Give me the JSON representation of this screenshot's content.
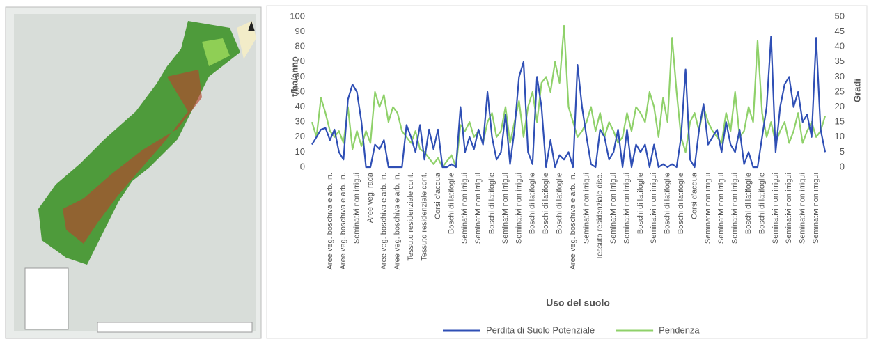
{
  "chart_data": {
    "type": "line",
    "x_label": "Uso del suolo",
    "y_label": "t/ha/anno",
    "y2_label": "Gradi",
    "categories": [
      null,
      null,
      null,
      null,
      "Aree veg. boschiva e arb. in.",
      null,
      null,
      "Aree veg. boschiva e arb. in.",
      null,
      null,
      "Seminativi non irrigui",
      null,
      null,
      "Aree veg. rada",
      null,
      null,
      "Aree veg. boschiva e arb. in.",
      null,
      null,
      "Aree veg. boschiva e arb. in.",
      null,
      null,
      "Tessuto residenziale cont.",
      null,
      null,
      "Tessuto residenziale cont.",
      null,
      null,
      "Corsi d'acqua",
      null,
      null,
      "Boschi di latifoglie",
      null,
      null,
      "Seminativi non irrigui",
      null,
      null,
      "Seminativi non irrigui",
      null,
      null,
      "Boschi di latifoglie",
      null,
      null,
      "Seminativi non irrigui",
      null,
      null,
      "Seminativi non irrigui",
      null,
      null,
      "Boschi di latifoglie",
      null,
      null,
      "Boschi di latifoglie",
      null,
      null,
      "Boschi di latifoglie",
      null,
      null,
      "Aree veg. boschiva e arb. in.",
      null,
      null,
      "Seminativi non irrigui",
      null,
      null,
      "Tessuto residenziale disc.",
      null,
      null,
      "Seminativi non irrigui",
      null,
      null,
      "Seminativi non irrigui",
      null,
      null,
      "Boschi di latifoglie",
      null,
      null,
      "Seminativi non irrigui",
      null,
      null,
      "Boschi di latifoglie",
      null,
      null,
      "Boschi di latifoglie",
      null,
      null,
      "Corsi d'acqua",
      null,
      null,
      "Seminativi non irrigui",
      null,
      null,
      "Seminativi non irrigui",
      null,
      null,
      "Seminativi non irrigui",
      null,
      null,
      "Boschi di latifoglie",
      null,
      null,
      "Boschi di latifoglie",
      null,
      null,
      "Seminativi non irrigui",
      null,
      null,
      "Seminativi non irrigui",
      null,
      null,
      "Seminativi non irrigui",
      null,
      null,
      "Seminativi non irrigui",
      null,
      null
    ],
    "series": [
      {
        "name": "Perdita di Suolo Potenziale",
        "color": "#2f4fb5",
        "values": [
          15,
          20,
          25,
          26,
          18,
          25,
          10,
          5,
          45,
          55,
          50,
          30,
          0,
          0,
          15,
          12,
          18,
          0,
          0,
          0,
          0,
          28,
          20,
          10,
          28,
          5,
          25,
          12,
          25,
          0,
          0,
          2,
          0,
          40,
          10,
          20,
          12,
          25,
          15,
          50,
          20,
          5,
          10,
          35,
          2,
          25,
          60,
          70,
          10,
          2,
          60,
          40,
          0,
          18,
          0,
          8,
          5,
          10,
          0,
          68,
          40,
          20,
          2,
          0,
          25,
          20,
          5,
          10,
          25,
          0,
          25,
          0,
          15,
          10,
          15,
          0,
          15,
          0,
          2,
          0,
          2,
          0,
          20,
          65,
          5,
          0,
          25,
          42,
          15,
          20,
          25,
          10,
          30,
          15,
          10,
          25,
          2,
          10,
          0,
          0,
          20,
          40,
          87,
          10,
          40,
          55,
          60,
          40,
          50,
          30,
          35,
          20,
          86,
          25,
          10
        ]
      },
      {
        "name": "Pendenza",
        "color": "#8fd16a",
        "axis": "y2",
        "values": [
          15,
          10,
          23,
          18,
          12,
          10,
          12,
          8,
          20,
          6,
          12,
          7,
          12,
          8,
          25,
          20,
          24,
          15,
          20,
          18,
          12,
          10,
          8,
          12,
          6,
          5,
          3,
          1,
          3,
          0,
          2,
          4,
          0,
          14,
          12,
          15,
          10,
          12,
          8,
          15,
          18,
          10,
          12,
          20,
          8,
          15,
          22,
          10,
          20,
          25,
          15,
          28,
          30,
          25,
          35,
          28,
          47,
          20,
          15,
          10,
          12,
          15,
          20,
          12,
          18,
          10,
          15,
          12,
          8,
          10,
          18,
          12,
          20,
          18,
          15,
          25,
          20,
          10,
          23,
          15,
          43,
          25,
          10,
          5,
          15,
          18,
          12,
          20,
          15,
          12,
          10,
          8,
          18,
          12,
          25,
          10,
          12,
          20,
          15,
          42,
          18,
          10,
          15,
          8,
          12,
          15,
          8,
          12,
          18,
          8,
          12,
          15,
          10,
          12,
          17
        ]
      }
    ],
    "ylim": [
      0,
      100
    ],
    "yticks": [
      0,
      10,
      20,
      30,
      40,
      50,
      60,
      70,
      80,
      90,
      100
    ],
    "y2lim": [
      0,
      50
    ],
    "y2ticks": [
      0,
      5,
      10,
      15,
      20,
      25,
      30,
      35,
      40,
      45,
      50
    ],
    "grid": false,
    "legend": "bottom"
  }
}
